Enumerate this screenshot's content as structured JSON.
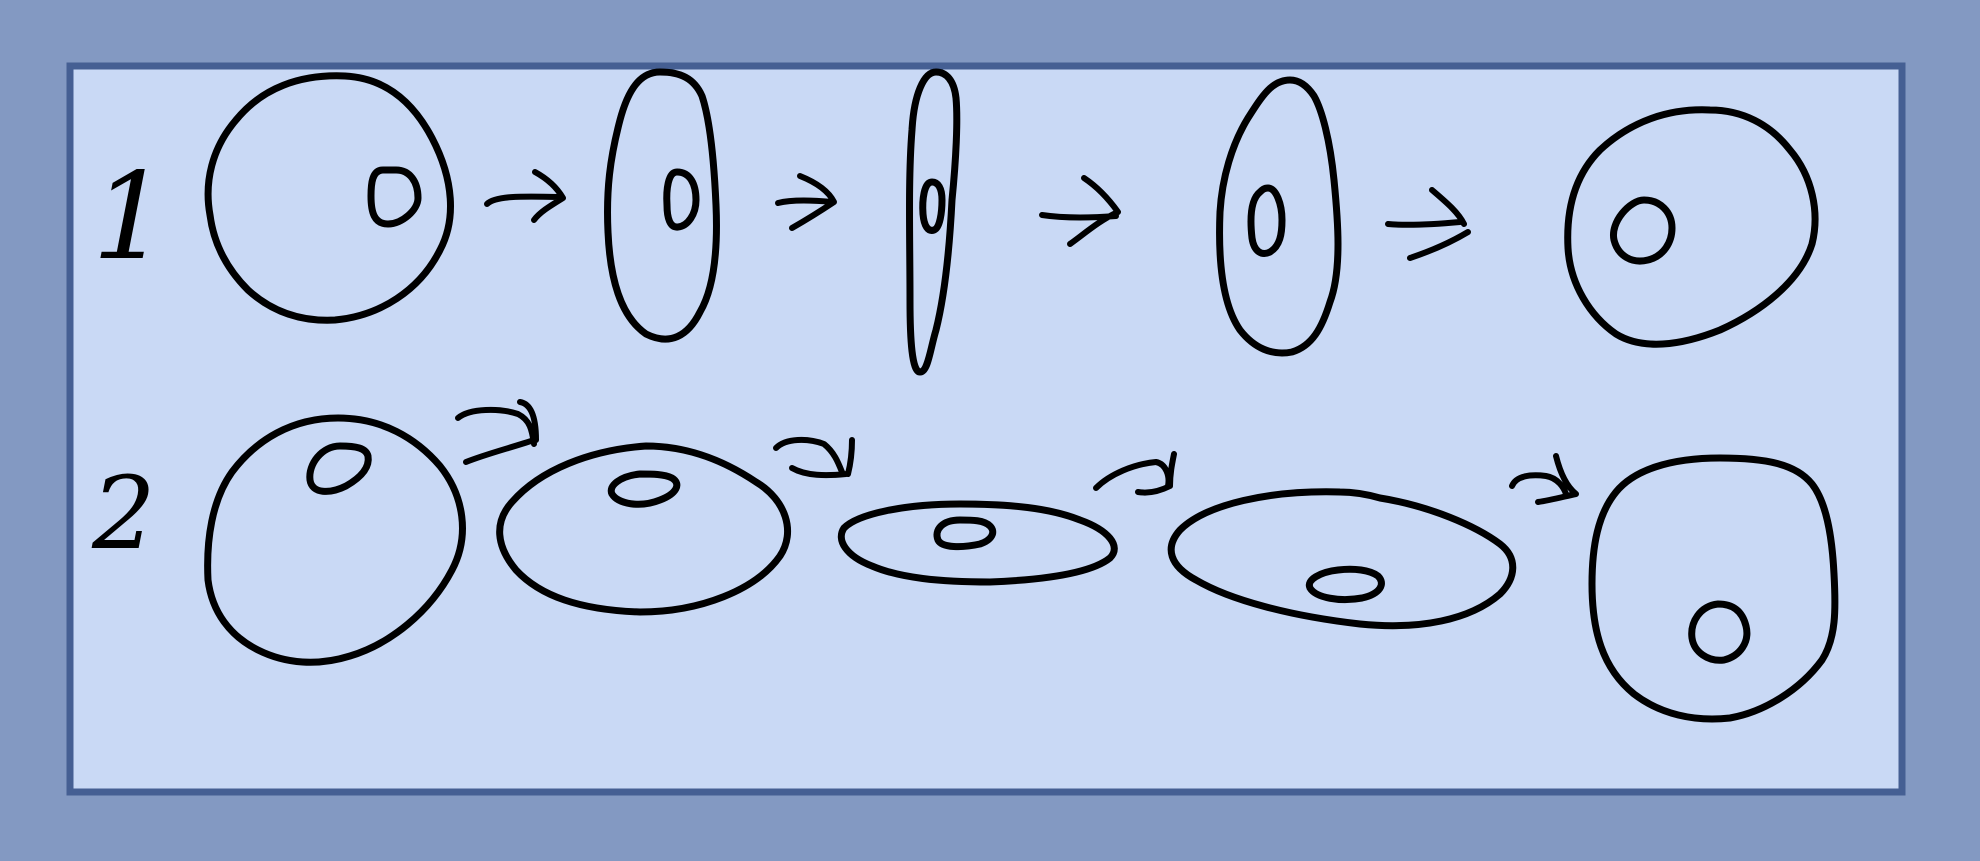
{
  "colors": {
    "outer_background": "#8399c2",
    "panel_fill": "#c9d9f5",
    "panel_border": "#455f93",
    "ink": "#000000"
  },
  "rows": [
    {
      "label": "1",
      "cells": 5,
      "arrows": 4
    },
    {
      "label": "2",
      "cells": 5,
      "arrows": 4
    }
  ]
}
